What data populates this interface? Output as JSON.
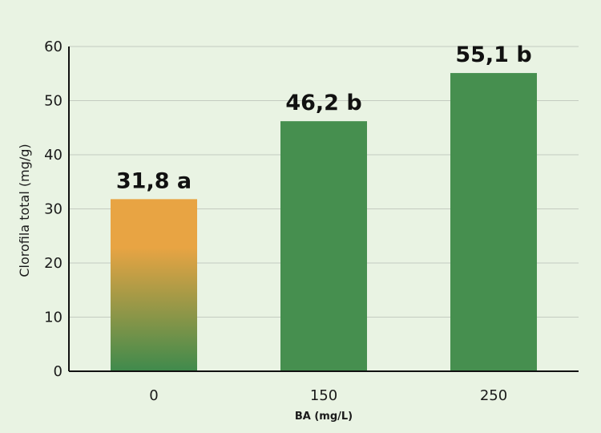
{
  "chart_data": {
    "type": "bar",
    "title": "",
    "xlabel": "BA (mg/L)",
    "ylabel": "Clorofila total (mg/g)",
    "ylim": [
      0,
      60
    ],
    "yticks": [
      0,
      10,
      20,
      30,
      40,
      50,
      60
    ],
    "grid": true,
    "categories": [
      "0",
      "150",
      "250"
    ],
    "values": [
      31.8,
      46.2,
      55.1
    ],
    "data_labels": [
      "31,8 a",
      "46,2 b",
      "55,1 b"
    ],
    "colors": {
      "control_top": "#e8a443",
      "control_bottom": "#3f8a4c",
      "treatment": "#468f4f",
      "grid": "#c4cbc0",
      "axis": "#111111"
    }
  }
}
